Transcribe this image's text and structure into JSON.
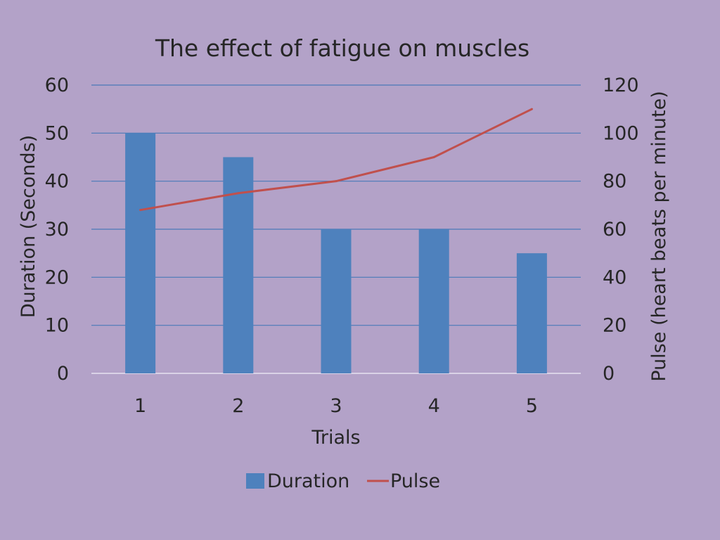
{
  "chart_data": {
    "type": "bar",
    "title": "The effect of fatigue on muscles",
    "categories": [
      "1",
      "2",
      "3",
      "4",
      "5"
    ],
    "xlabel": "Trials",
    "ylabel": "Duration (Seconds)",
    "y2label": "Pulse (heart beats per minute)",
    "ylim": [
      0,
      60
    ],
    "y2lim": [
      0,
      120
    ],
    "yticks": [
      "0",
      "10",
      "20",
      "30",
      "40",
      "50",
      "60"
    ],
    "y2ticks": [
      "0",
      "20",
      "40",
      "60",
      "80",
      "100",
      "120"
    ],
    "grid": true,
    "legend_position": "bottom",
    "series": [
      {
        "name": "Duration",
        "type": "bar",
        "axis": "left",
        "values": [
          50,
          45,
          30,
          30,
          25
        ],
        "color": "#4e81bd"
      },
      {
        "name": "Pulse",
        "type": "line",
        "axis": "right",
        "values": [
          68,
          75,
          80,
          90,
          110
        ],
        "color": "#c0504d"
      }
    ]
  },
  "colors": {
    "background": "#b3a2c8",
    "bar": "#4e81bd",
    "line": "#c0504d",
    "grid": "#4a78b8"
  }
}
